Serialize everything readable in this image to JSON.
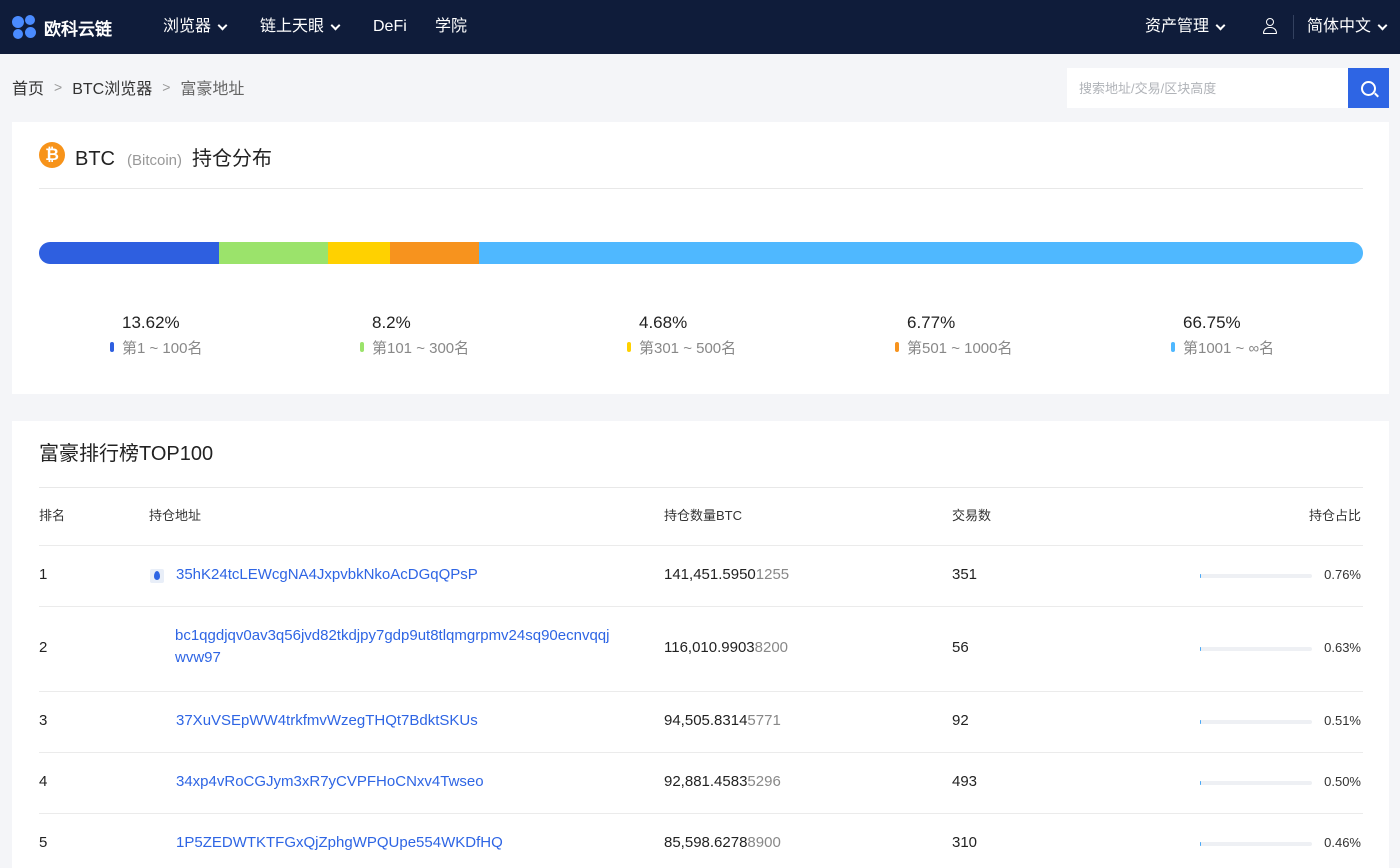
{
  "nav": {
    "logo_text": "欧科云链",
    "items": [
      "浏览器",
      "链上天眼",
      "DeFi",
      "学院"
    ],
    "asset_mgmt": "资产管理",
    "language": "简体中文"
  },
  "breadcrumb": {
    "home": "首页",
    "sep": ">",
    "explorer": "BTC浏览器",
    "current": "富豪地址"
  },
  "search": {
    "placeholder": "搜索地址/交易/区块高度"
  },
  "distribution": {
    "coin_glyph": "₿",
    "symbol": "BTC",
    "name": "(Bitcoin)",
    "title": "持仓分布",
    "segments": [
      {
        "pct": "13.62%",
        "value": 13.62,
        "label": "第1 ~ 100名",
        "color": "#2e5fe0"
      },
      {
        "pct": "8.2%",
        "value": 8.2,
        "label": "第101 ~ 300名",
        "color": "#9be36b"
      },
      {
        "pct": "4.68%",
        "value": 4.68,
        "label": "第301 ~ 500名",
        "color": "#ffd100"
      },
      {
        "pct": "6.77%",
        "value": 6.77,
        "label": "第501 ~ 1000名",
        "color": "#f7931e"
      },
      {
        "pct": "66.75%",
        "value": 66.75,
        "label": "第1001 ~ ∞名",
        "color": "#4fb8ff"
      }
    ]
  },
  "ranking": {
    "title": "富豪排行榜TOP100",
    "headers": {
      "rank": "排名",
      "address": "持仓地址",
      "amount": "持仓数量BTC",
      "tx_count": "交易数",
      "ratio": "持仓占比"
    },
    "rows": [
      {
        "rank": "1",
        "address": "35hK24tcLEWcgNA4JxpvbkNkoAcDGqQPsP",
        "address_line2": "",
        "amount_main": "141,451.5950",
        "amount_dim": "1255",
        "tx": "351",
        "ratio": "0.76%",
        "ratio_value": 0.76,
        "has_icon": true
      },
      {
        "rank": "2",
        "address": "bc1qgdjqv0av3q56jvd82tkdjpy7gdp9ut8tlqmgrpmv24sq90ecnvqqj",
        "address_line2": "wvw97",
        "amount_main": "116,010.9903",
        "amount_dim": "8200",
        "tx": "56",
        "ratio": "0.63%",
        "ratio_value": 0.63,
        "has_icon": false
      },
      {
        "rank": "3",
        "address": "37XuVSEpWW4trkfmvWzegTHQt7BdktSKUs",
        "address_line2": "",
        "amount_main": "94,505.8314",
        "amount_dim": "5771",
        "tx": "92",
        "ratio": "0.51%",
        "ratio_value": 0.51,
        "has_icon": false
      },
      {
        "rank": "4",
        "address": "34xp4vRoCGJym3xR7yCVPFHoCNxv4Twseo",
        "address_line2": "",
        "amount_main": "92,881.4583",
        "amount_dim": "5296",
        "tx": "493",
        "ratio": "0.50%",
        "ratio_value": 0.5,
        "has_icon": false
      },
      {
        "rank": "5",
        "address": "1P5ZEDWTKTFGxQjZphgWPQUpe554WKDfHQ",
        "address_line2": "",
        "amount_main": "85,598.6278",
        "amount_dim": "8900",
        "tx": "310",
        "ratio": "0.46%",
        "ratio_value": 0.46,
        "has_icon": false
      }
    ]
  }
}
